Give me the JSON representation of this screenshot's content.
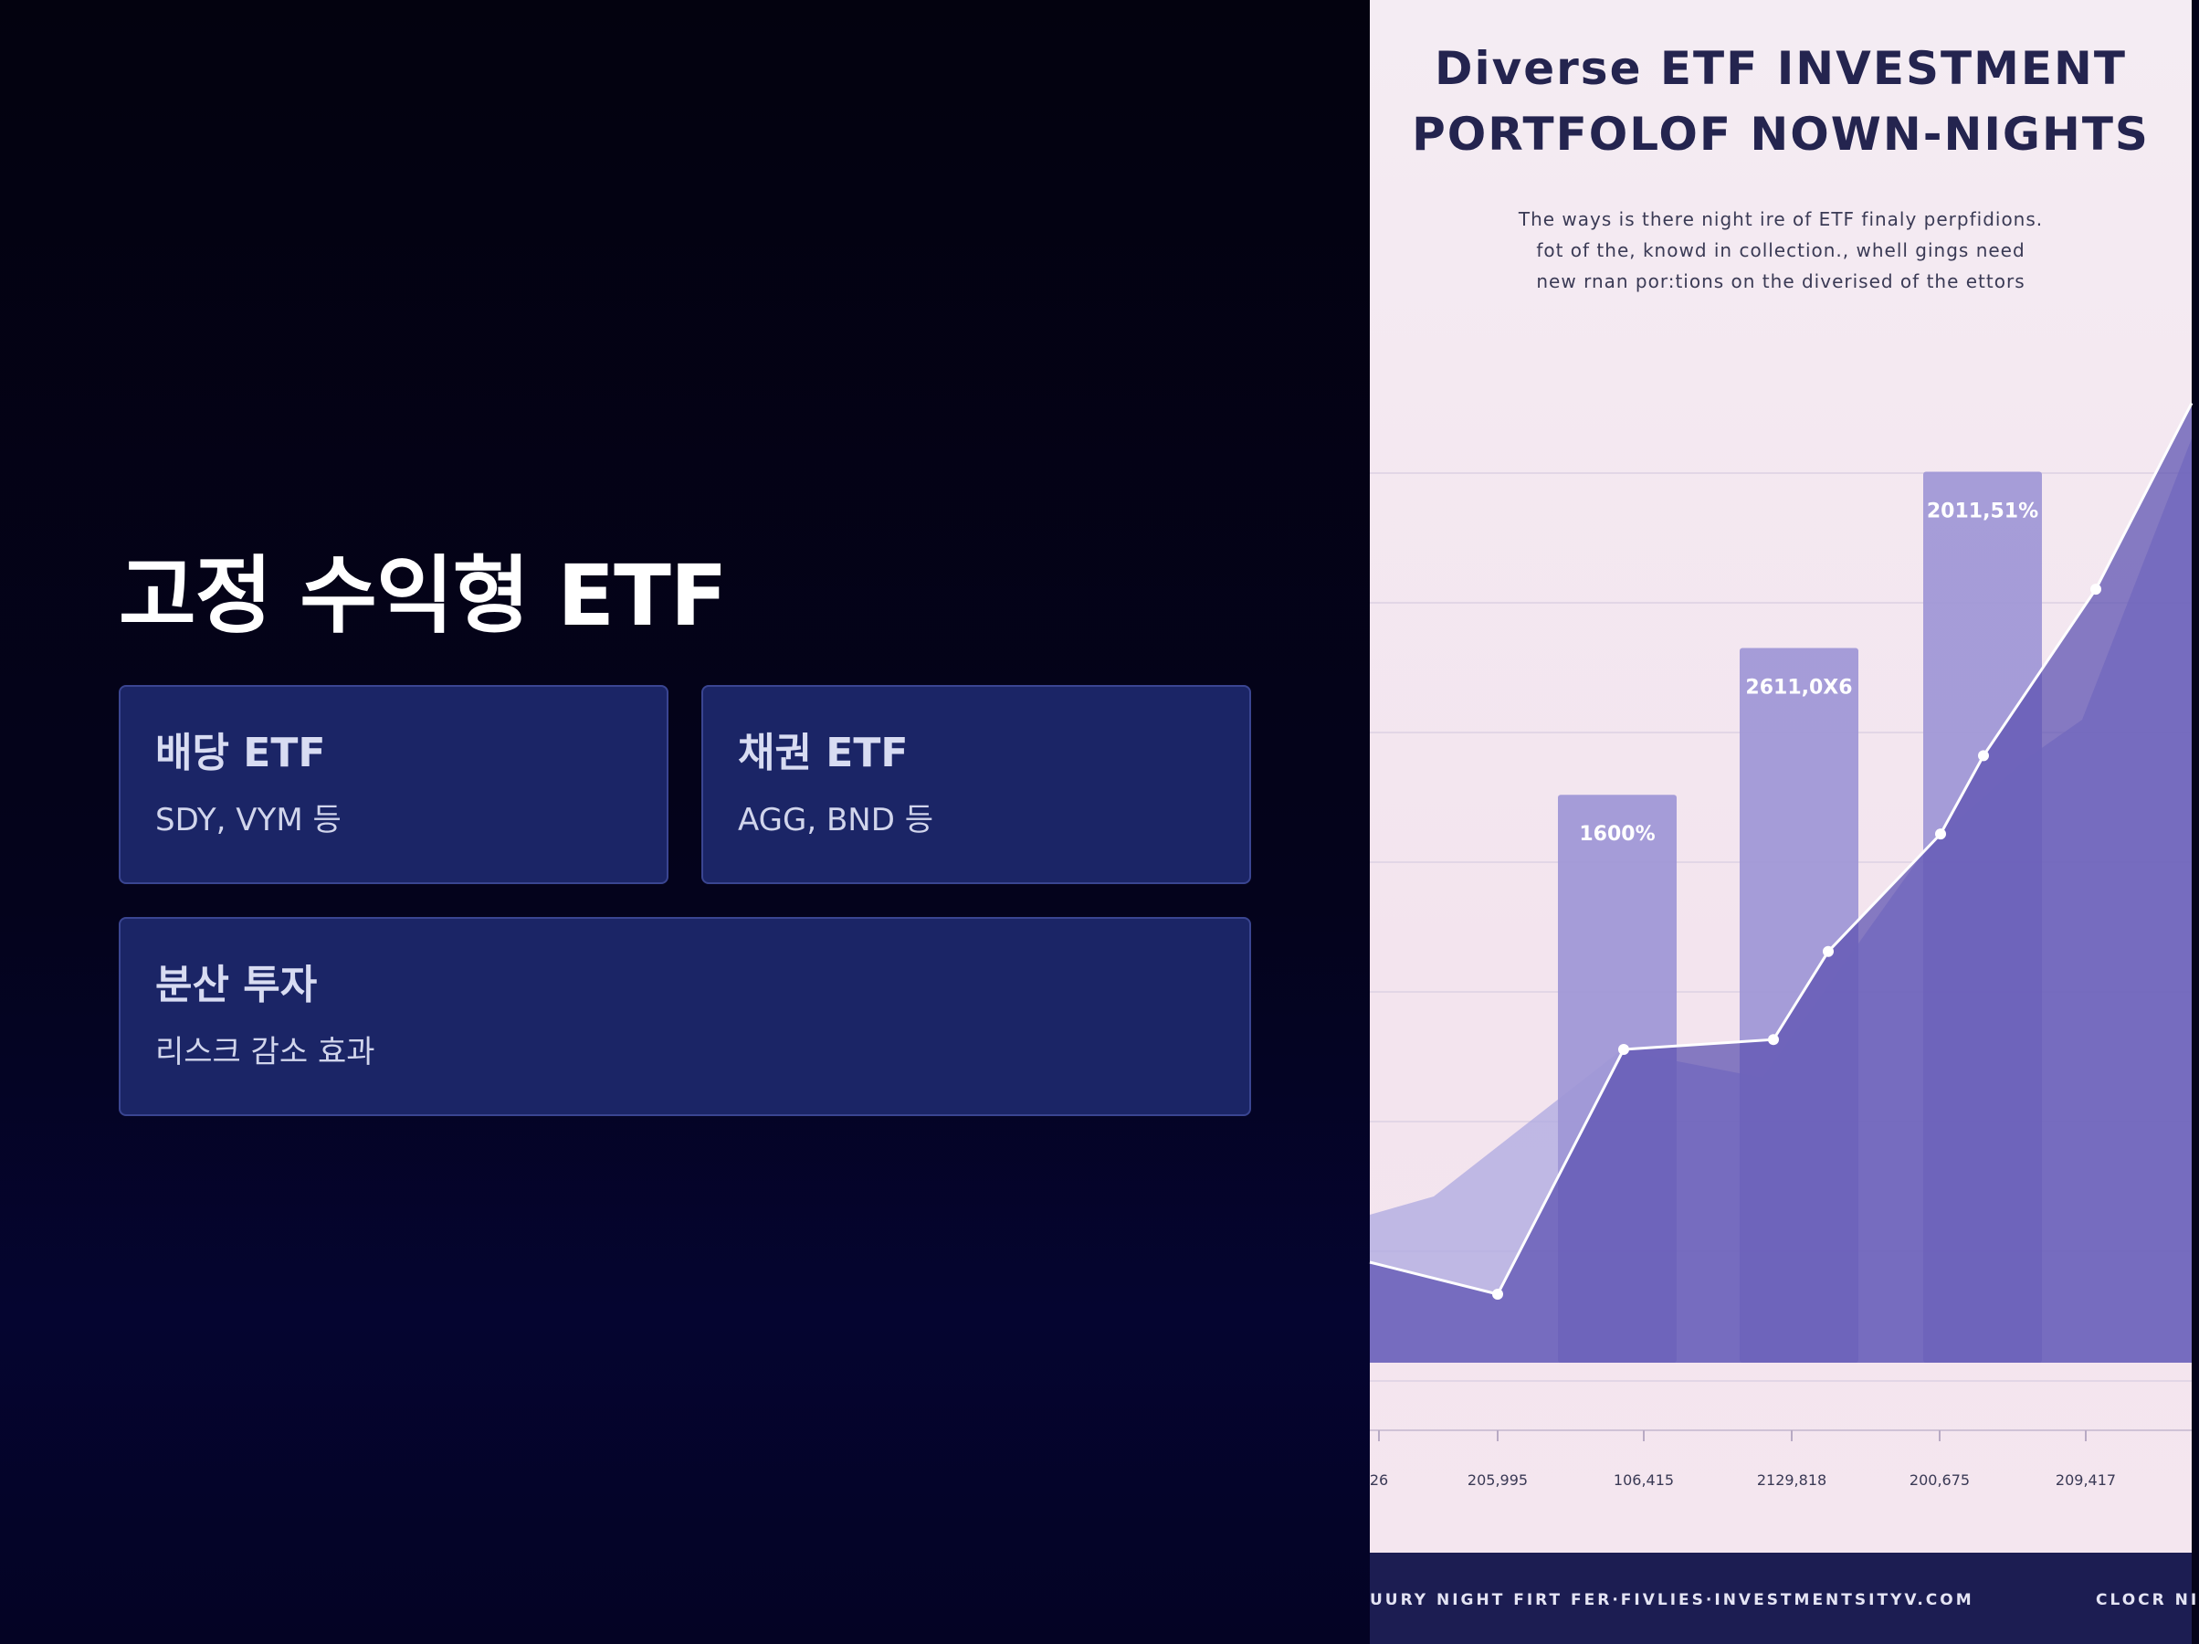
{
  "slide": {
    "title": "고정 수익형 ETF",
    "cards": [
      {
        "title": "배당 ETF",
        "subtitle": "SDY, VYM 등"
      },
      {
        "title": "채권 ETF",
        "subtitle": "AGG, BND 등"
      },
      {
        "title": "분산 투자",
        "subtitle": "리스크 감소 효과"
      }
    ]
  },
  "illustration": {
    "title_line1": "Diverse ETF INVESTMENT",
    "title_line2": "PORTFOLOF NOWN-NIGHTS",
    "desc_line1": "The ways is there night ire of ETF finaly perpfidions.",
    "desc_line2": "fot of the, knowd in collection., whell gings need",
    "desc_line3": "new rnan por:tions on the diverised of the ettors",
    "footer_left": "UURY NIGHT FIRT FER·FIVLIES·INVESTMENTSITYV.COM",
    "footer_right": "CLOCR NI"
  },
  "chart_data": {
    "type": "bar",
    "categories": [
      "26",
      "205,995",
      "106,415",
      "2129,818",
      "200,675",
      "209,417"
    ],
    "bar_labels": [
      "1600%",
      "2611,0X6",
      "2011,51%"
    ],
    "bar_values": [
      0.58,
      0.73,
      0.91
    ],
    "line_values": [
      0.07,
      0.32,
      0.33,
      0.47,
      0.58,
      0.79
    ],
    "colors": {
      "bar": "#9e96d6",
      "area": "#5a4fb0",
      "line": "#ffffff"
    }
  }
}
